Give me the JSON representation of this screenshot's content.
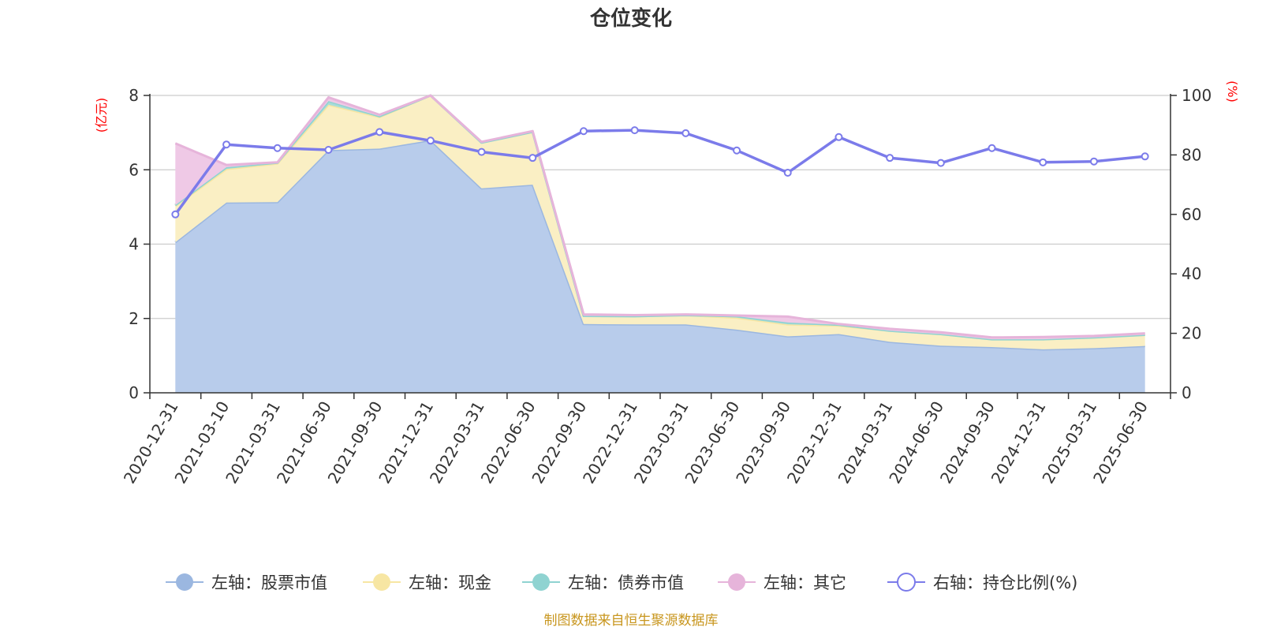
{
  "chart_data": {
    "type": "area",
    "title": "仓位变化",
    "categories": [
      "2020-12-31",
      "2021-03-10",
      "2021-03-31",
      "2021-06-30",
      "2021-09-30",
      "2021-12-31",
      "2022-03-31",
      "2022-06-30",
      "2022-09-30",
      "2022-12-31",
      "2023-03-31",
      "2023-06-30",
      "2023-09-30",
      "2023-12-31",
      "2024-03-31",
      "2024-06-30",
      "2024-09-30",
      "2024-12-31",
      "2025-03-31",
      "2025-06-30"
    ],
    "left_axis": {
      "unit": "(亿元)",
      "ylim": [
        0,
        8
      ],
      "ticks": [
        "0",
        "2",
        "4",
        "6",
        "8"
      ]
    },
    "right_axis": {
      "unit": "(%)",
      "ylim": [
        0,
        100
      ],
      "ticks": [
        "0",
        "20",
        "40",
        "60",
        "80",
        "100"
      ]
    },
    "series": [
      {
        "name": "左轴：股票市值",
        "axis": "left",
        "type": "area",
        "stack": true,
        "color": "#9bb7e0",
        "fill": "#b8cceb",
        "values": [
          4.05,
          5.12,
          5.13,
          6.53,
          6.57,
          6.8,
          5.5,
          5.6,
          1.85,
          1.84,
          1.84,
          1.7,
          1.52,
          1.58,
          1.37,
          1.27,
          1.23,
          1.17,
          1.2,
          1.26
        ]
      },
      {
        "name": "左轴：现金",
        "axis": "left",
        "type": "area",
        "stack": true,
        "color": "#f7e6a3",
        "fill": "#faefc4",
        "values": [
          0.98,
          0.9,
          1.04,
          1.22,
          0.85,
          1.2,
          1.23,
          1.42,
          0.22,
          0.22,
          0.25,
          0.32,
          0.32,
          0.23,
          0.3,
          0.31,
          0.21,
          0.27,
          0.29,
          0.3
        ]
      },
      {
        "name": "左轴：债券市值",
        "axis": "left",
        "type": "area",
        "stack": true,
        "color": "#8fd3d1",
        "fill": "#a8dcd9",
        "values": [
          0.02,
          0.05,
          0.02,
          0.1,
          0.02,
          0.0,
          0.0,
          0.0,
          0.0,
          0.0,
          0.0,
          0.04,
          0.05,
          0.02,
          0.0,
          0.0,
          0.0,
          0.0,
          0.0,
          0.0
        ]
      },
      {
        "name": "左轴：其它",
        "axis": "left",
        "type": "area",
        "stack": true,
        "color": "#e6b4da",
        "fill": "#efc9e6",
        "values": [
          1.66,
          0.06,
          0.01,
          0.1,
          0.04,
          0.0,
          0.02,
          0.02,
          0.04,
          0.03,
          0.02,
          0.02,
          0.16,
          0.02,
          0.05,
          0.05,
          0.05,
          0.06,
          0.04,
          0.04
        ]
      },
      {
        "name": "右轴：持仓比例(%)",
        "axis": "right",
        "type": "line",
        "color": "#7b7bea",
        "values": [
          60,
          83.5,
          82.3,
          81.7,
          87.7,
          84.8,
          81.0,
          79.0,
          88.0,
          88.3,
          87.3,
          81.5,
          74.0,
          86.0,
          79.0,
          77.3,
          82.3,
          77.5,
          77.8,
          79.5
        ]
      }
    ],
    "legend_position": "bottom",
    "grid": true
  },
  "source_note": "制图数据来自恒生聚源数据库"
}
